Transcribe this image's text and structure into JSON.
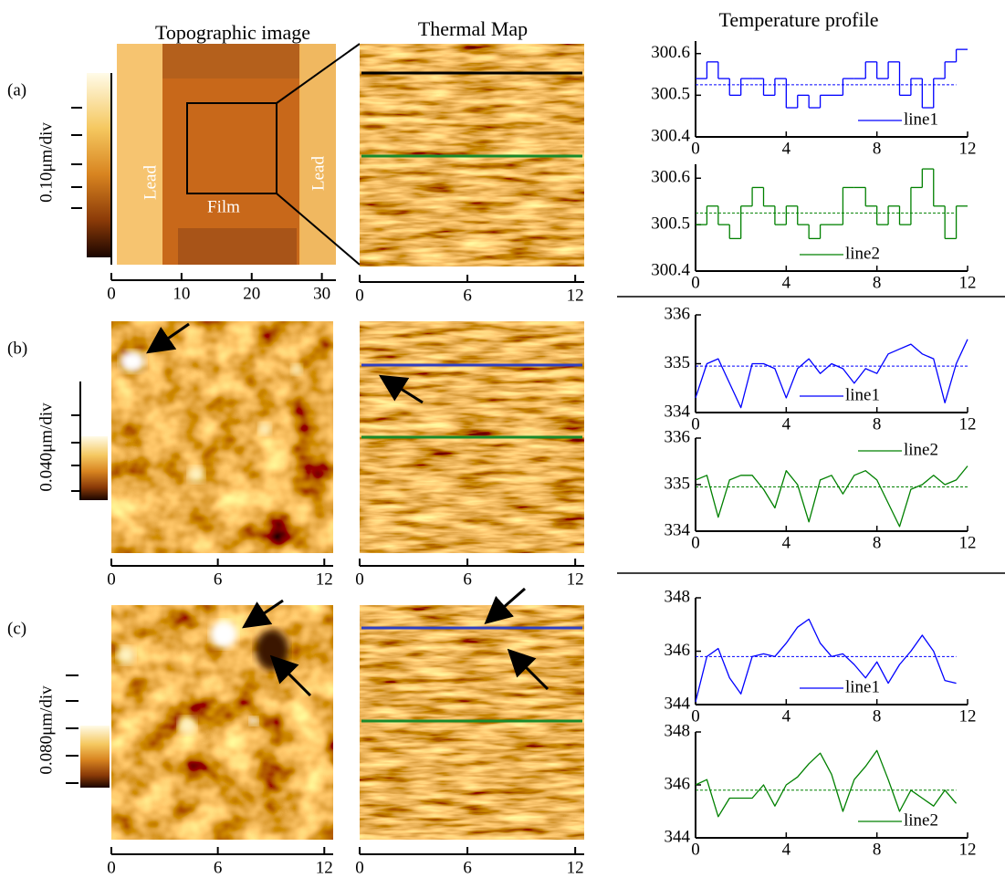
{
  "headers": [
    "Topographic image",
    "Thermal Map",
    "Temperature profile"
  ],
  "panels": [
    {
      "label": "(a)",
      "scale_label": "0.10μm/div",
      "annotations": [
        "Lead",
        "Film",
        "Lead"
      ],
      "topo_axis": {
        "xlim": [
          0,
          32
        ],
        "xticks": [
          0,
          10,
          20,
          30
        ]
      },
      "thermal_axis": {
        "xlim": [
          0,
          12.5
        ],
        "xticks": [
          0,
          6,
          12
        ]
      }
    },
    {
      "label": "(b)",
      "scale_label": "0.040μm/div",
      "topo_axis": {
        "xlim": [
          0,
          12.5
        ],
        "xticks": [
          0,
          6,
          12
        ]
      },
      "thermal_axis": {
        "xlim": [
          0,
          12.5
        ],
        "xticks": [
          0,
          6,
          12
        ]
      }
    },
    {
      "label": "(c)",
      "scale_label": "0.080μm/div",
      "topo_axis": {
        "xlim": [
          0,
          12.5
        ],
        "xticks": [
          0,
          6,
          12
        ]
      },
      "thermal_axis": {
        "xlim": [
          0,
          12.5
        ],
        "xticks": [
          0,
          6,
          12
        ]
      }
    }
  ],
  "chart_data": [
    {
      "type": "line",
      "step": true,
      "legend": "lower right",
      "xlim": [
        0,
        12
      ],
      "xticks": [
        0,
        4,
        8,
        12
      ],
      "ylim": [
        300.4,
        300.63
      ],
      "yticks": [
        300.4,
        300.5,
        300.6
      ],
      "x": [
        0,
        0.5,
        1,
        1.5,
        2,
        2.5,
        3,
        3.5,
        4,
        4.5,
        5,
        5.5,
        6,
        6.5,
        7,
        7.5,
        8,
        8.5,
        9,
        9.5,
        10,
        10.5,
        11,
        11.5
      ],
      "hline": {
        "value": 300.525,
        "color": "#0000ff"
      },
      "series": [
        {
          "name": "line1",
          "color": "#0000ff",
          "values": [
            300.54,
            300.58,
            300.54,
            300.5,
            300.54,
            300.54,
            300.5,
            300.54,
            300.47,
            300.5,
            300.47,
            300.5,
            300.5,
            300.54,
            300.54,
            300.58,
            300.54,
            300.58,
            300.5,
            300.54,
            300.47,
            300.54,
            300.58,
            300.61
          ]
        }
      ]
    },
    {
      "type": "line",
      "step": true,
      "legend": "lower center",
      "xlim": [
        0,
        12
      ],
      "xticks": [
        0,
        4,
        8,
        12
      ],
      "ylim": [
        300.4,
        300.63
      ],
      "yticks": [
        300.4,
        300.5,
        300.6
      ],
      "x": [
        0,
        0.5,
        1,
        1.5,
        2,
        2.5,
        3,
        3.5,
        4,
        4.5,
        5,
        5.5,
        6,
        6.5,
        7,
        7.5,
        8,
        8.5,
        9,
        9.5,
        10,
        10.5,
        11,
        11.5
      ],
      "hline": {
        "value": 300.525,
        "color": "#008000"
      },
      "series": [
        {
          "name": "line2",
          "color": "#008000",
          "values": [
            300.5,
            300.54,
            300.5,
            300.47,
            300.54,
            300.58,
            300.54,
            300.5,
            300.54,
            300.5,
            300.47,
            300.5,
            300.5,
            300.58,
            300.58,
            300.54,
            300.5,
            300.54,
            300.5,
            300.58,
            300.62,
            300.54,
            300.47,
            300.54
          ]
        }
      ]
    },
    {
      "type": "line",
      "legend": "lower center",
      "xlim": [
        0,
        12
      ],
      "xticks": [
        0,
        4,
        8,
        12
      ],
      "ylim": [
        334,
        336
      ],
      "yticks": [
        334,
        335,
        336
      ],
      "x": [
        0,
        0.5,
        1,
        1.5,
        2,
        2.5,
        3,
        3.5,
        4,
        4.5,
        5,
        5.5,
        6,
        6.5,
        7,
        7.5,
        8,
        8.5,
        9,
        9.5,
        10,
        10.5,
        11,
        11.5,
        12
      ],
      "hline": {
        "value": 334.95,
        "color": "#0000ff"
      },
      "series": [
        {
          "name": "line1",
          "color": "#0000ff",
          "values": [
            334.3,
            335.0,
            335.1,
            334.6,
            334.1,
            335.0,
            335.0,
            334.9,
            334.3,
            334.9,
            335.1,
            334.8,
            335.0,
            334.9,
            334.6,
            334.9,
            334.8,
            335.2,
            335.3,
            335.4,
            335.2,
            335.1,
            334.2,
            335.0,
            335.5
          ]
        }
      ]
    },
    {
      "type": "line",
      "legend": "upper right",
      "xlim": [
        0,
        12
      ],
      "xticks": [
        0,
        4,
        8,
        12
      ],
      "ylim": [
        334,
        336
      ],
      "yticks": [
        334,
        335,
        336
      ],
      "x": [
        0,
        0.5,
        1,
        1.5,
        2,
        2.5,
        3,
        3.5,
        4,
        4.5,
        5,
        5.5,
        6,
        6.5,
        7,
        7.5,
        8,
        8.5,
        9,
        9.5,
        10,
        10.5,
        11,
        11.5,
        12
      ],
      "hline": {
        "value": 334.95,
        "color": "#008000"
      },
      "series": [
        {
          "name": "line2",
          "color": "#008000",
          "values": [
            335.1,
            335.2,
            334.3,
            335.1,
            335.2,
            335.2,
            334.9,
            334.5,
            335.3,
            335.0,
            334.2,
            335.1,
            335.2,
            334.8,
            335.2,
            335.3,
            335.1,
            334.6,
            334.1,
            334.9,
            335.0,
            335.2,
            335.0,
            335.1,
            335.4
          ]
        }
      ]
    },
    {
      "type": "line",
      "legend": "lower center",
      "xlim": [
        0,
        12
      ],
      "xticks": [
        0,
        4,
        8,
        12
      ],
      "ylim": [
        344,
        348
      ],
      "yticks": [
        344,
        346,
        348
      ],
      "x": [
        0,
        0.5,
        1,
        1.5,
        2,
        2.5,
        3,
        3.5,
        4,
        4.5,
        5,
        5.5,
        6,
        6.5,
        7,
        7.5,
        8,
        8.5,
        9,
        9.5,
        10,
        10.5,
        11,
        11.5
      ],
      "hline": {
        "value": 345.8,
        "color": "#0000ff"
      },
      "series": [
        {
          "name": "line1",
          "color": "#0000ff",
          "values": [
            344.1,
            345.8,
            346.1,
            345.0,
            344.4,
            345.8,
            345.9,
            345.8,
            346.3,
            346.9,
            347.2,
            346.3,
            345.8,
            345.9,
            345.5,
            345.0,
            345.6,
            344.8,
            345.5,
            346.0,
            346.6,
            346.0,
            344.9,
            344.8
          ]
        }
      ]
    },
    {
      "type": "line",
      "legend": "lower right",
      "xlim": [
        0,
        12
      ],
      "xticks": [
        0,
        4,
        8,
        12
      ],
      "ylim": [
        344,
        348
      ],
      "yticks": [
        344,
        346,
        348
      ],
      "x": [
        0,
        0.5,
        1,
        1.5,
        2,
        2.5,
        3,
        3.5,
        4,
        4.5,
        5,
        5.5,
        6,
        6.5,
        7,
        7.5,
        8,
        8.5,
        9,
        9.5,
        10,
        10.5,
        11,
        11.5
      ],
      "hline": {
        "value": 345.8,
        "color": "#008000"
      },
      "series": [
        {
          "name": "line2",
          "color": "#008000",
          "values": [
            346.0,
            346.2,
            344.8,
            345.5,
            345.5,
            345.5,
            346.0,
            345.2,
            346.0,
            346.3,
            346.8,
            347.2,
            346.4,
            345.0,
            346.2,
            346.7,
            347.3,
            346.2,
            345.0,
            345.8,
            345.5,
            345.2,
            345.8,
            345.3
          ]
        }
      ]
    }
  ]
}
